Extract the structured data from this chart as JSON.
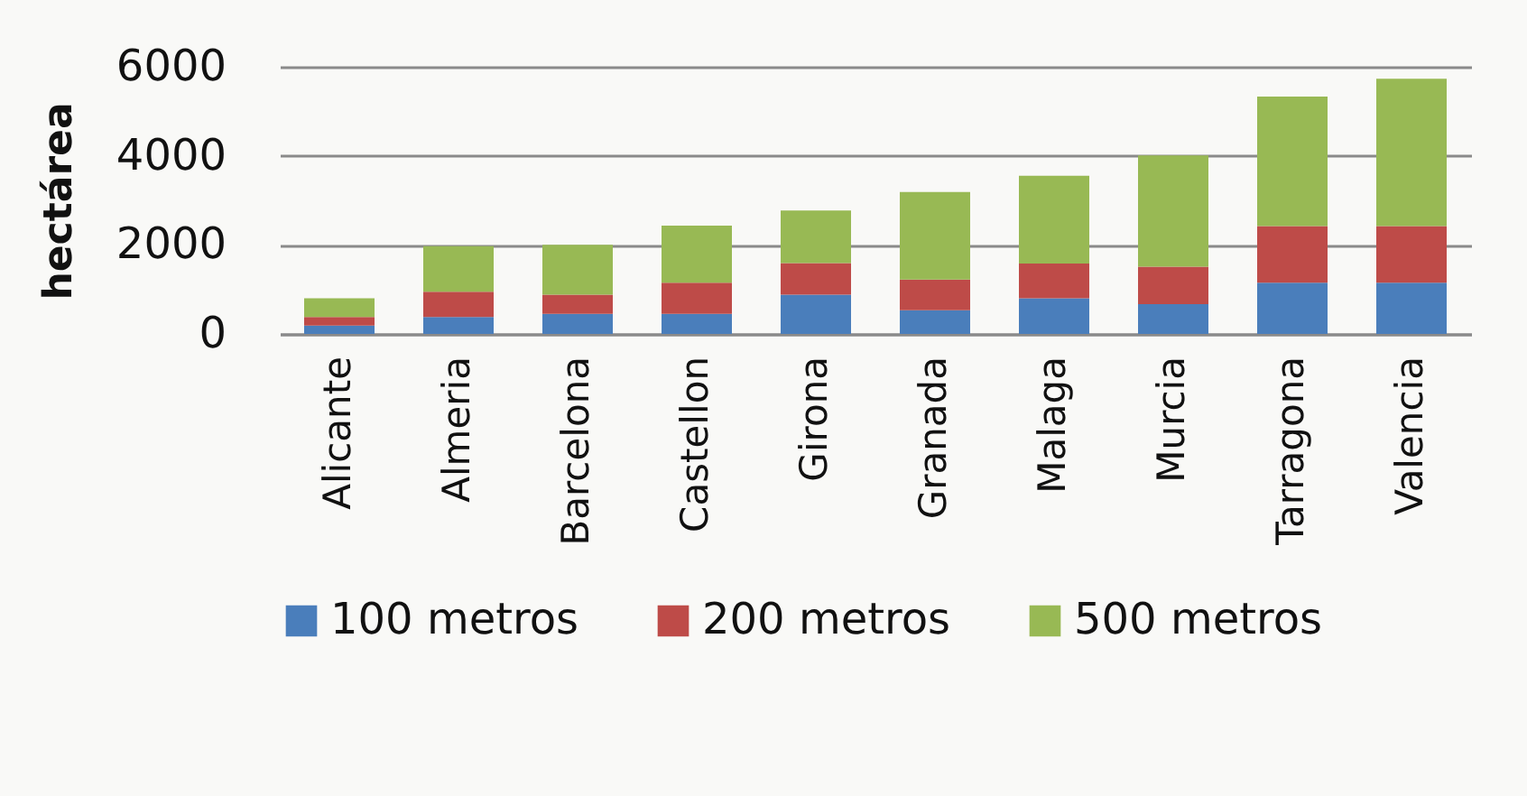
{
  "chart_data": {
    "type": "bar",
    "stacked": true,
    "ylabel": "hectárea",
    "categories": [
      "Alicante",
      "Almeria",
      "Barcelona",
      "Castellon",
      "Girona",
      "Granada",
      "Malaga",
      "Murcia",
      "Tarragona",
      "Valencia"
    ],
    "series": [
      {
        "name": "100 metros",
        "color": "#4a7ebb",
        "values": [
          190,
          380,
          450,
          450,
          880,
          530,
          800,
          670,
          1150,
          1150
        ]
      },
      {
        "name": "200 metros",
        "color": "#be4b48",
        "values": [
          190,
          570,
          430,
          700,
          710,
          690,
          780,
          840,
          1270,
          1270
        ]
      },
      {
        "name": "500 metros",
        "color": "#98b954",
        "values": [
          420,
          1020,
          1120,
          1280,
          1180,
          1970,
          1970,
          2500,
          2910,
          3310
        ]
      }
    ],
    "ylim": [
      0,
      6000
    ],
    "yticks": [
      0,
      2000,
      4000,
      6000
    ],
    "grid": "y",
    "legend": "bottom"
  }
}
